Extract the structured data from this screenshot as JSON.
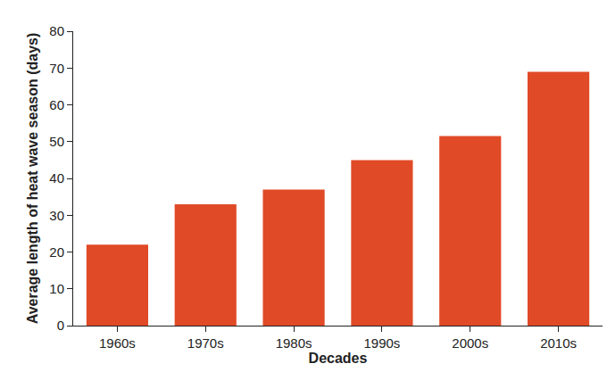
{
  "chart_data": {
    "type": "bar",
    "x_label": "Decades",
    "y_label": "Average length of heat wave season (days)",
    "categories": [
      "1960s",
      "1970s",
      "1980s",
      "1990s",
      "2000s",
      "2010s"
    ],
    "values": [
      22,
      33,
      37,
      45,
      51.5,
      69
    ],
    "color": "#e04a27",
    "ylim": [
      0,
      80
    ],
    "yticks": [
      0,
      10,
      20,
      30,
      40,
      50,
      60,
      70,
      80
    ],
    "grid": false
  }
}
